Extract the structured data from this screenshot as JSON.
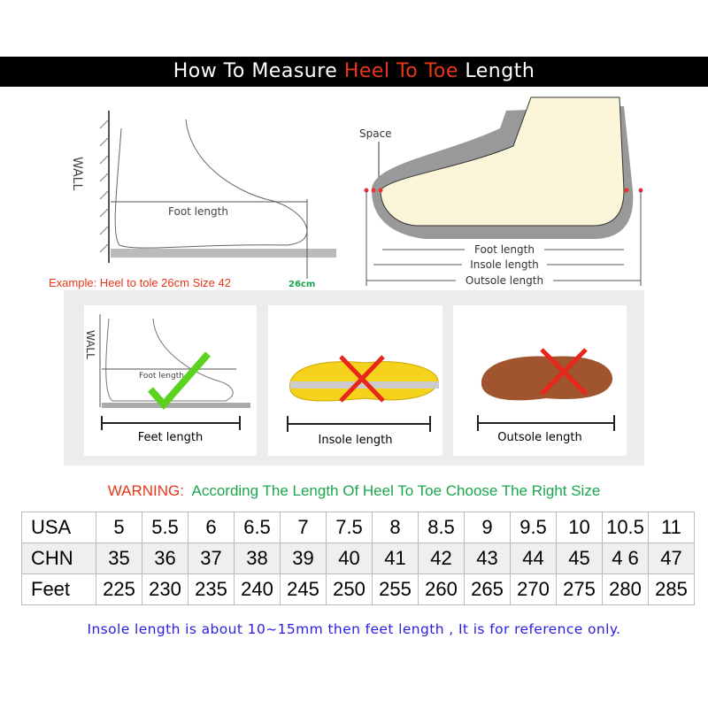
{
  "banner": {
    "part1": "How To Measure ",
    "highlight": "Heel To Toe",
    "part2": " Length"
  },
  "left_diagram": {
    "wall": "WALL",
    "foot_length": "Foot length"
  },
  "right_diagram": {
    "space": "Space",
    "foot_length": "Foot length",
    "insole_length": "Insole length",
    "outsole_length": "Outsole length"
  },
  "example": "Example: Heel to tole 26cm Size 42",
  "example_mark": "26cm",
  "panels": [
    {
      "label": "Feet length",
      "wall": "WALL",
      "inner": "Foot length",
      "status": "correct"
    },
    {
      "label": "Insole length",
      "status": "wrong"
    },
    {
      "label": "Outsole length",
      "status": "wrong"
    }
  ],
  "warning": {
    "prefix": "WARNING:",
    "text": "According The Length Of Heel To Toe Choose The Right Size"
  },
  "size_table": {
    "rows": [
      {
        "label": "USA",
        "values": [
          "5",
          "5.5",
          "6",
          "6.5",
          "7",
          "7.5",
          "8",
          "8.5",
          "9",
          "9.5",
          "10",
          "10.5",
          "11"
        ]
      },
      {
        "label": "CHN",
        "values": [
          "35",
          "36",
          "37",
          "38",
          "39",
          "40",
          "41",
          "42",
          "43",
          "44",
          "45",
          "4 6",
          "47"
        ]
      },
      {
        "label": "Feet",
        "values": [
          "225",
          "230",
          "235",
          "240",
          "245",
          "250",
          "255",
          "260",
          "265",
          "270",
          "275",
          "280",
          "285"
        ]
      }
    ]
  },
  "note": "Insole length is about 10~15mm then feet length , It is for reference only.",
  "colors": {
    "accent_red": "#e8361a",
    "green": "#1aa64a",
    "note_blue": "#2a1ee0"
  }
}
